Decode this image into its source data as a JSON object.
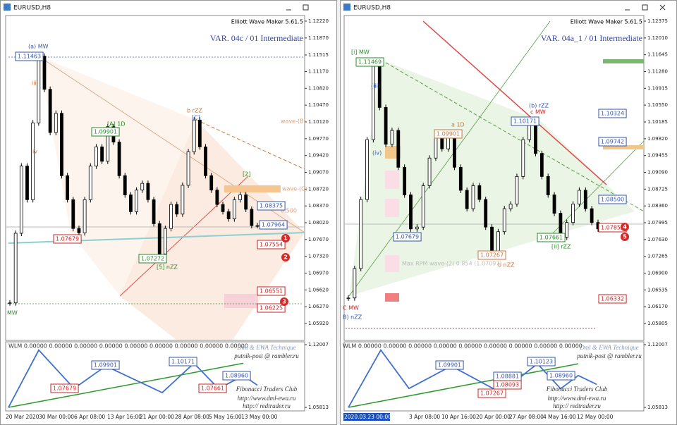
{
  "windows": [
    {
      "title": "EURUSD,H8",
      "indicator_name": "Elliott Wave Maker 5.61.5",
      "variant": "VAR. 04c  / 01 Intermediate",
      "ticks": [
        {
          "value": 1.1222,
          "label": "1.12220"
        },
        {
          "value": 1.1187,
          "label": "1.11870"
        },
        {
          "value": 1.11515,
          "label": "1.11515"
        },
        {
          "value": 1.1117,
          "label": "1.11170"
        },
        {
          "value": 1.1082,
          "label": "1.10820"
        },
        {
          "value": 1.1047,
          "label": "1.10470"
        },
        {
          "value": 1.1012,
          "label": "1.10120"
        },
        {
          "value": 1.0977,
          "label": "1.09770"
        },
        {
          "value": 1.0942,
          "label": "1.09420"
        },
        {
          "value": 1.0907,
          "label": "1.09070"
        },
        {
          "value": 1.0872,
          "label": "1.08720"
        },
        {
          "value": 1.0837,
          "label": "1.08370"
        },
        {
          "value": 1.0802,
          "label": "1.08020"
        },
        {
          "value": 1.0767,
          "label": "1.07670"
        },
        {
          "value": 1.0732,
          "label": "1.07320"
        },
        {
          "value": 1.0697,
          "label": "1.06970"
        },
        {
          "value": 1.0662,
          "label": "1.06620"
        },
        {
          "value": 1.0627,
          "label": "1.06270"
        },
        {
          "value": 1.0592,
          "label": "1.05920"
        }
      ],
      "closes": [
        1.0635,
        1.078,
        1.092,
        1.085,
        1.101,
        1.1149,
        1.108,
        1.099,
        1.103,
        1.09,
        1.085,
        1.079,
        1.0781,
        1.085,
        1.092,
        1.096,
        1.093,
        1.1002,
        1.097,
        1.09,
        1.086,
        1.0825,
        1.087,
        1.0884,
        1.085,
        1.08,
        1.0737,
        1.079,
        1.084,
        1.082,
        1.088,
        1.095,
        1.1016,
        1.096,
        1.09,
        1.087,
        1.084,
        1.0825,
        1.081,
        1.085,
        1.086,
        1.083,
        1.0796,
        1.0796
      ],
      "ind_ticks": [
        {
          "value": 1.12007,
          "label": "1.12007"
        },
        {
          "value": 1.05813,
          "label": "1.05813"
        }
      ],
      "zigzag": [
        1.0581,
        1.1147,
        1.0768,
        1.099,
        1.0727,
        1.1017,
        1.0766,
        1.0896,
        1.08
      ],
      "dates": [
        "20 Mar 2020",
        "30 Mar 00:00",
        "6 Apr 08:00",
        "13 Apr 16:00",
        "21 Apr 00:00",
        "28 Apr 08:00",
        "5 May 16:00",
        "13 May 00:00"
      ],
      "labels": [
        "(a) MW",
        "1.11463",
        "iii",
        "iv",
        "[A] 1D",
        "1.09901",
        "b rZZ",
        "[C]",
        "wave-(B)",
        "[2]",
        "wave-(C)",
        "0.500",
        "1.08375",
        "1.07964",
        "1.07554",
        "1.07272",
        "[5] nZZ",
        "1.07679",
        "1.06551",
        "1.06225",
        "MW"
      ],
      "circles": [
        "1",
        "2",
        "3"
      ],
      "lower_labels": [
        "WLM 0.00000 0.00000 0.00000 0.00000 0.00000 0.00000 0.00000 0.00000 0.00000",
        "Dml & EWA Technique",
        "putnik-post @ rambler.ru",
        "1.09901",
        "1.10171",
        "1.08960",
        "1.07679",
        "1.07661",
        "Fibonacci    Traders    Club",
        "http://www.dml-ewa.ru",
        "http:// redtrader.ru"
      ]
    },
    {
      "title": "EURUSD,H8",
      "indicator_name": "Elliott Wave Maker 5.61.5",
      "variant": "VAR. 04a_1  / 01 Intermediate",
      "ticks": [
        {
          "value": 1.12375,
          "label": "1.12375"
        },
        {
          "value": 1.1201,
          "label": "1.12010"
        },
        {
          "value": 1.11645,
          "label": "1.11645"
        },
        {
          "value": 1.1128,
          "label": "1.11280"
        },
        {
          "value": 1.10915,
          "label": "1.10915"
        },
        {
          "value": 1.1055,
          "label": "1.10550"
        },
        {
          "value": 1.10185,
          "label": "1.10185"
        },
        {
          "value": 1.0982,
          "label": "1.09820"
        },
        {
          "value": 1.09455,
          "label": "1.09455"
        },
        {
          "value": 1.0909,
          "label": "1.09090"
        },
        {
          "value": 1.08725,
          "label": "1.08725"
        },
        {
          "value": 1.0836,
          "label": "1.08360"
        },
        {
          "value": 1.07995,
          "label": "1.07995"
        },
        {
          "value": 1.0763,
          "label": "1.07630"
        },
        {
          "value": 1.07265,
          "label": "1.07265"
        },
        {
          "value": 1.069,
          "label": "1.06900"
        },
        {
          "value": 1.06535,
          "label": "1.06535"
        },
        {
          "value": 1.0617,
          "label": "1.06170"
        },
        {
          "value": 1.05805,
          "label": "1.05805"
        }
      ],
      "closes": [
        1.0636,
        1.07,
        1.085,
        1.098,
        1.1147,
        1.105,
        1.097,
        1.1,
        1.092,
        1.086,
        1.0786,
        1.079,
        1.088,
        1.094,
        1.099,
        1.096,
        1.0985,
        1.092,
        1.087,
        1.083,
        1.088,
        1.085,
        1.079,
        1.0727,
        1.078,
        1.083,
        1.084,
        1.09,
        1.098,
        1.1017,
        1.095,
        1.09,
        1.086,
        1.082,
        1.0768,
        1.08,
        1.084,
        1.087,
        1.083,
        1.08,
        1.0786
      ],
      "ind_ticks": [
        {
          "value": 1.12007,
          "label": "1.12007"
        },
        {
          "value": 1.05813,
          "label": "1.05813"
        }
      ],
      "zigzag": [
        1.0581,
        1.1147,
        1.0768,
        1.099,
        1.0727,
        1.1012,
        1.0766,
        1.0896,
        1.0809
      ],
      "dates": [
        "2020.03.23 00:00",
        "3 Apr 08:00",
        "10 Apr 16:00",
        "20 Apr 00:00",
        "27 Apr 08:00",
        "4 May 16:00",
        "12 May 00:00"
      ],
      "labels": [
        "[i] MW",
        "1.11469",
        "(iii)",
        "(iv)",
        "a 1D",
        "1.09901",
        "(b) rZZ",
        "c MW",
        "1.10171",
        "1.10324",
        "1.09742",
        "1.08500",
        "1.07856",
        "1.07661",
        "[ii] rZZ",
        "1.07679",
        "1.07267",
        "b nZZ",
        "Max RPM wave-(2) 0.854 (1.07097)",
        "1.06332",
        "C MW",
        "B) nZZ"
      ],
      "circles": [
        "4",
        "5"
      ],
      "lower_labels": [
        "WLM 0.00000 0.00000 0.00000 0.00000 0.00000 0.00000 0.00000 0.00000 0.00000",
        "Dml & EWA Technique",
        "putnik-post @ rambler.ru",
        "1.09901",
        "1.10123",
        "1.08881",
        "1.08093",
        "1.08960",
        "1.07267",
        "Fibonacci    Traders    Club",
        "http://www.dml-ewa.ru",
        "http:// redtrader.ru"
      ]
    }
  ]
}
